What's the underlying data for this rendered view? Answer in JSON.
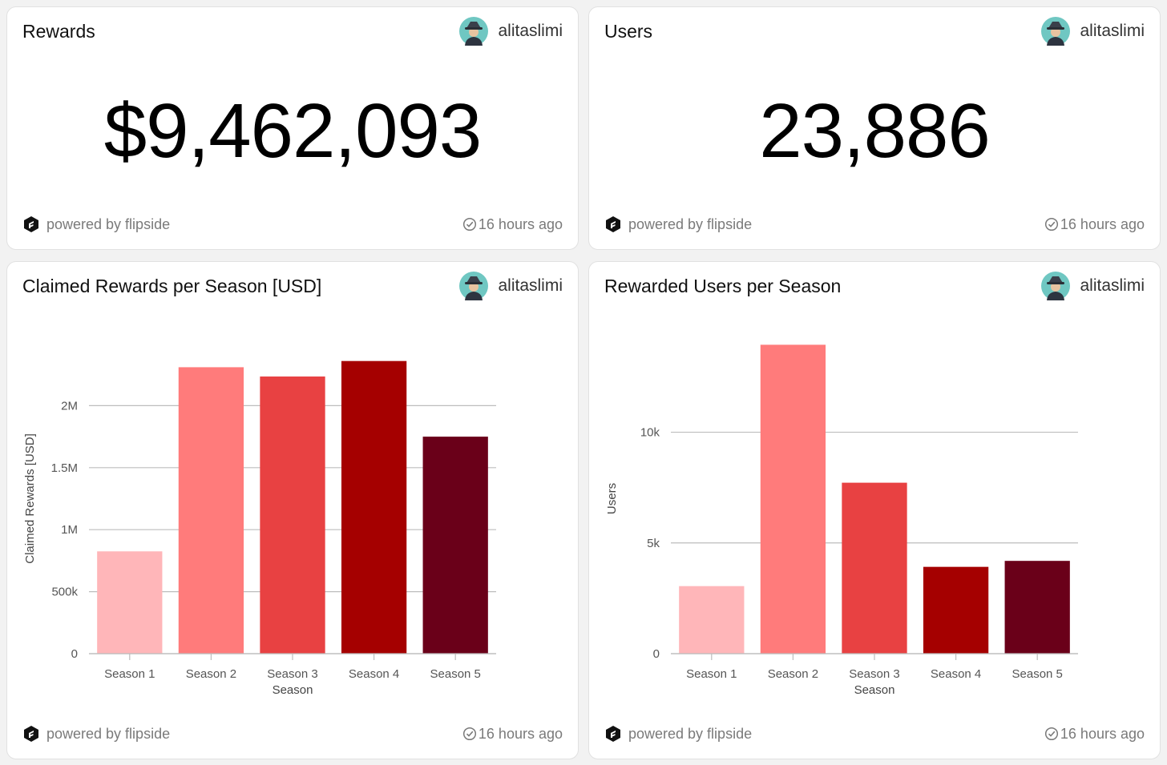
{
  "author": "alitaslimi",
  "footer": {
    "brand_text": "powered by flipside",
    "refresh_text": "16 hours ago"
  },
  "cards": {
    "rewards": {
      "title": "Rewards",
      "value": "$9,462,093"
    },
    "users": {
      "title": "Users",
      "value": "23,886"
    }
  },
  "colors": {
    "season_1": "#ffb6b9",
    "season_2": "#ff7b7b",
    "season_3": "#e84142",
    "season_4": "#a50000",
    "season_5": "#6a0019",
    "grid": "#bdbdbd"
  },
  "chart_data": [
    {
      "type": "bar",
      "title": "Claimed Rewards per Season [USD]",
      "xlabel": "Season",
      "ylabel": "Claimed Rewards [USD]",
      "categories": [
        "Season 1",
        "Season 2",
        "Season 3",
        "Season 4",
        "Season 5"
      ],
      "values": [
        825000,
        2310000,
        2235000,
        2360000,
        1750000
      ],
      "ylim": [
        0,
        2500000
      ],
      "yticks": [
        0,
        500000,
        1000000,
        1500000,
        2000000
      ],
      "ytick_labels": [
        "0",
        "500k",
        "1M",
        "1.5M",
        "2M"
      ],
      "grid": true,
      "legend": false
    },
    {
      "type": "bar",
      "title": "Rewarded Users per Season",
      "xlabel": "Season",
      "ylabel": "Users",
      "categories": [
        "Season 1",
        "Season 2",
        "Season 3",
        "Season 4",
        "Season 5"
      ],
      "values": [
        3050,
        13950,
        7720,
        3920,
        4190
      ],
      "ylim": [
        0,
        14000
      ],
      "yticks": [
        0,
        5000,
        10000
      ],
      "ytick_labels": [
        "0",
        "5k",
        "10k"
      ],
      "grid": true,
      "legend": false
    }
  ]
}
